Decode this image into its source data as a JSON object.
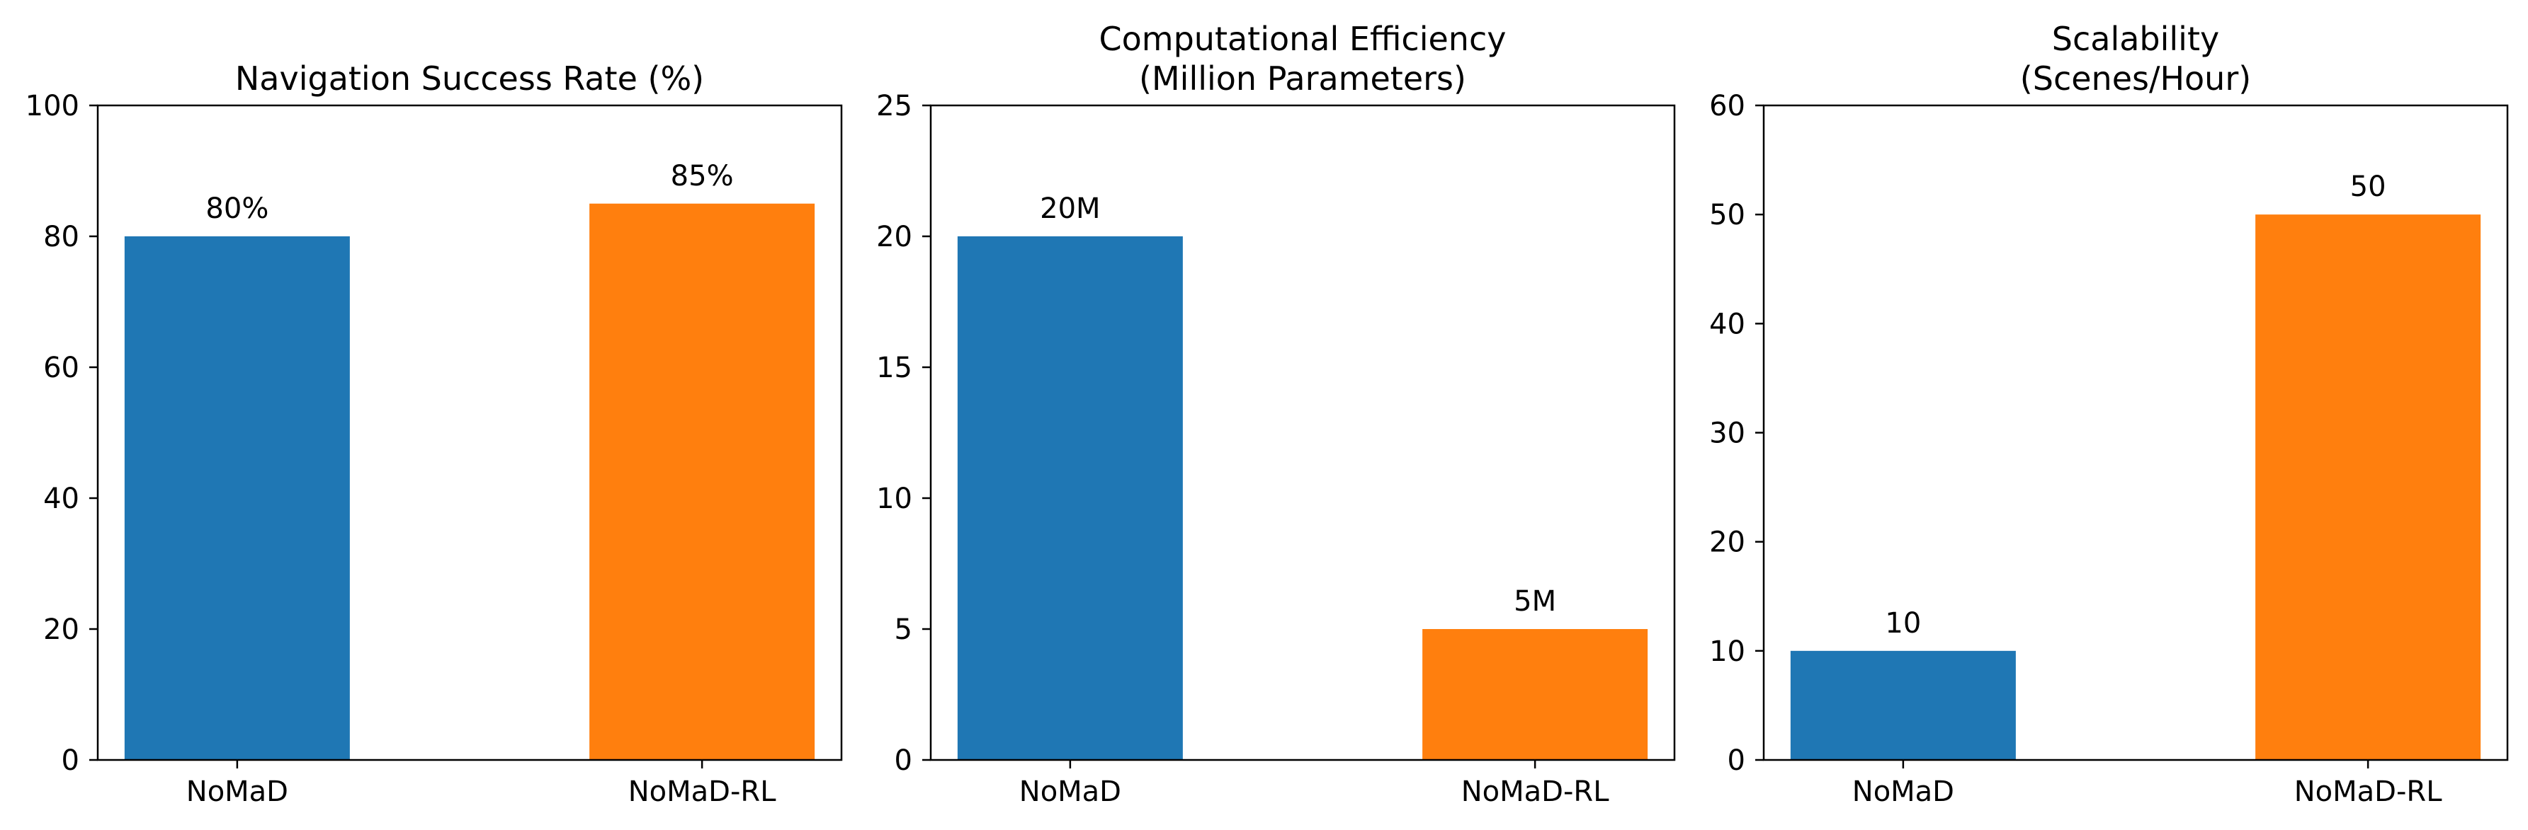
{
  "figure": {
    "colors": {
      "NoMaD": "#1f77b4",
      "NoMaD-RL": "#ff7f0e",
      "axis": "#000000"
    }
  },
  "chart_data": [
    {
      "type": "bar",
      "title_lines": [
        "Navigation Success Rate (%)"
      ],
      "categories": [
        "NoMaD",
        "NoMaD-RL"
      ],
      "values": [
        80,
        85
      ],
      "bar_labels": [
        "80%",
        "85%"
      ],
      "xlabel": "",
      "ylabel": "",
      "ylim": [
        0,
        100
      ],
      "yticks": [
        0,
        20,
        40,
        60,
        80,
        100
      ],
      "grid": false,
      "legend": "none"
    },
    {
      "type": "bar",
      "title_lines": [
        "Computational Efficiency",
        "(Million Parameters)"
      ],
      "categories": [
        "NoMaD",
        "NoMaD-RL"
      ],
      "values": [
        20,
        5
      ],
      "bar_labels": [
        "20M",
        "5M"
      ],
      "xlabel": "",
      "ylabel": "",
      "ylim": [
        0,
        25
      ],
      "yticks": [
        0,
        5,
        10,
        15,
        20,
        25
      ],
      "grid": false,
      "legend": "none"
    },
    {
      "type": "bar",
      "title_lines": [
        "Scalability",
        "(Scenes/Hour)"
      ],
      "categories": [
        "NoMaD",
        "NoMaD-RL"
      ],
      "values": [
        10,
        50
      ],
      "bar_labels": [
        "10",
        "50"
      ],
      "xlabel": "",
      "ylabel": "",
      "ylim": [
        0,
        60
      ],
      "yticks": [
        0,
        10,
        20,
        30,
        40,
        50,
        60
      ],
      "grid": false,
      "legend": "none"
    }
  ]
}
